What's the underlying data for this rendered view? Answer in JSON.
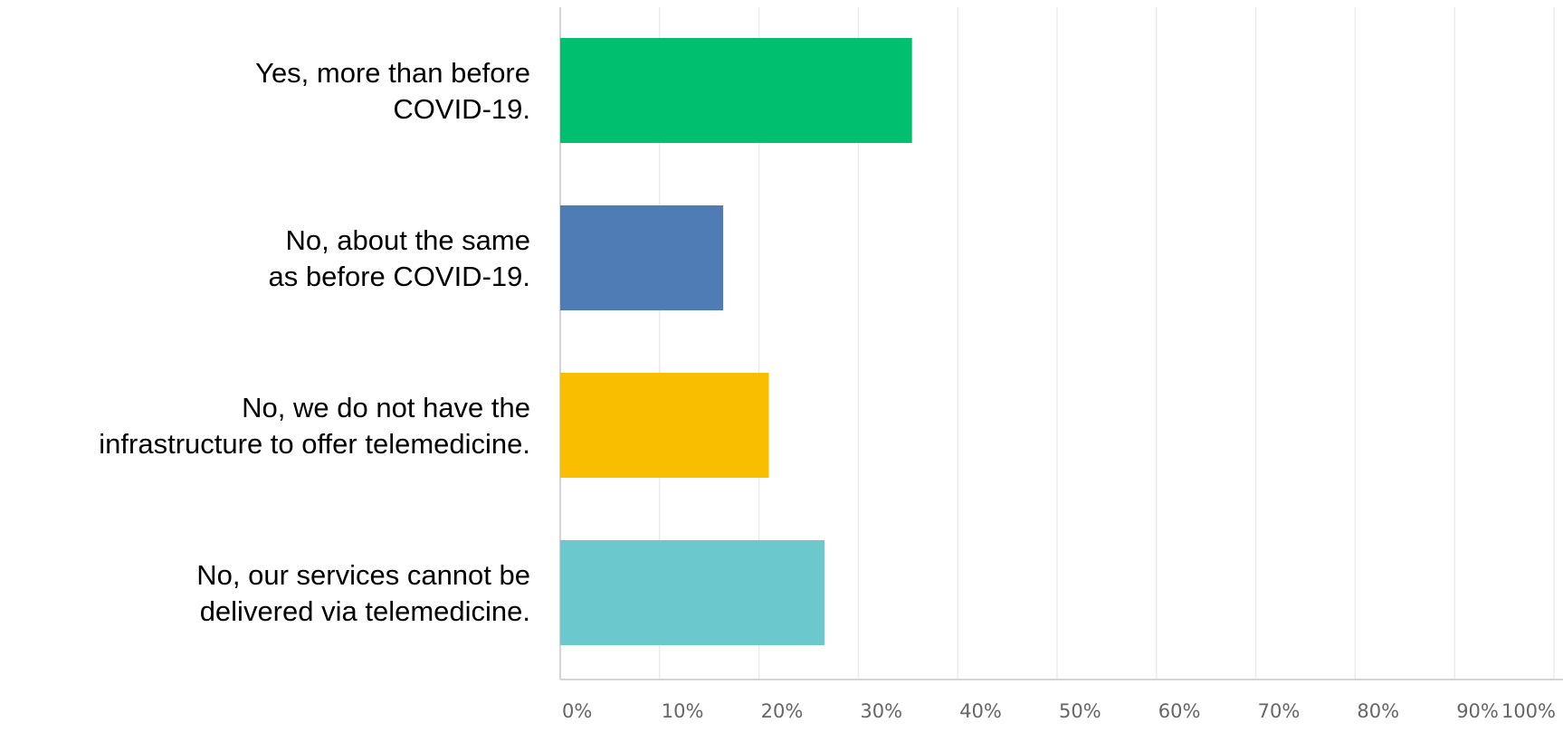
{
  "chart_data": {
    "type": "bar",
    "orientation": "horizontal",
    "categories": [
      [
        "Yes, more than before",
        "COVID-19."
      ],
      [
        "No, about the same",
        "as before COVID-19."
      ],
      [
        "No, we do not have the",
        "infrastructure to offer telemedicine."
      ],
      [
        "No, our services cannot be",
        "delivered via telemedicine."
      ]
    ],
    "values": [
      35.4,
      16.4,
      21.0,
      26.6
    ],
    "colors": [
      "#00bf6f",
      "#507cb6",
      "#f9be00",
      "#6bc8cd"
    ],
    "xlim": [
      0,
      100
    ],
    "xticks": [
      "0%",
      "10%",
      "20%",
      "30%",
      "40%",
      "50%",
      "60%",
      "70%",
      "80%",
      "90%",
      "100%"
    ],
    "grid": true,
    "title": "",
    "xlabel": "",
    "ylabel": ""
  }
}
